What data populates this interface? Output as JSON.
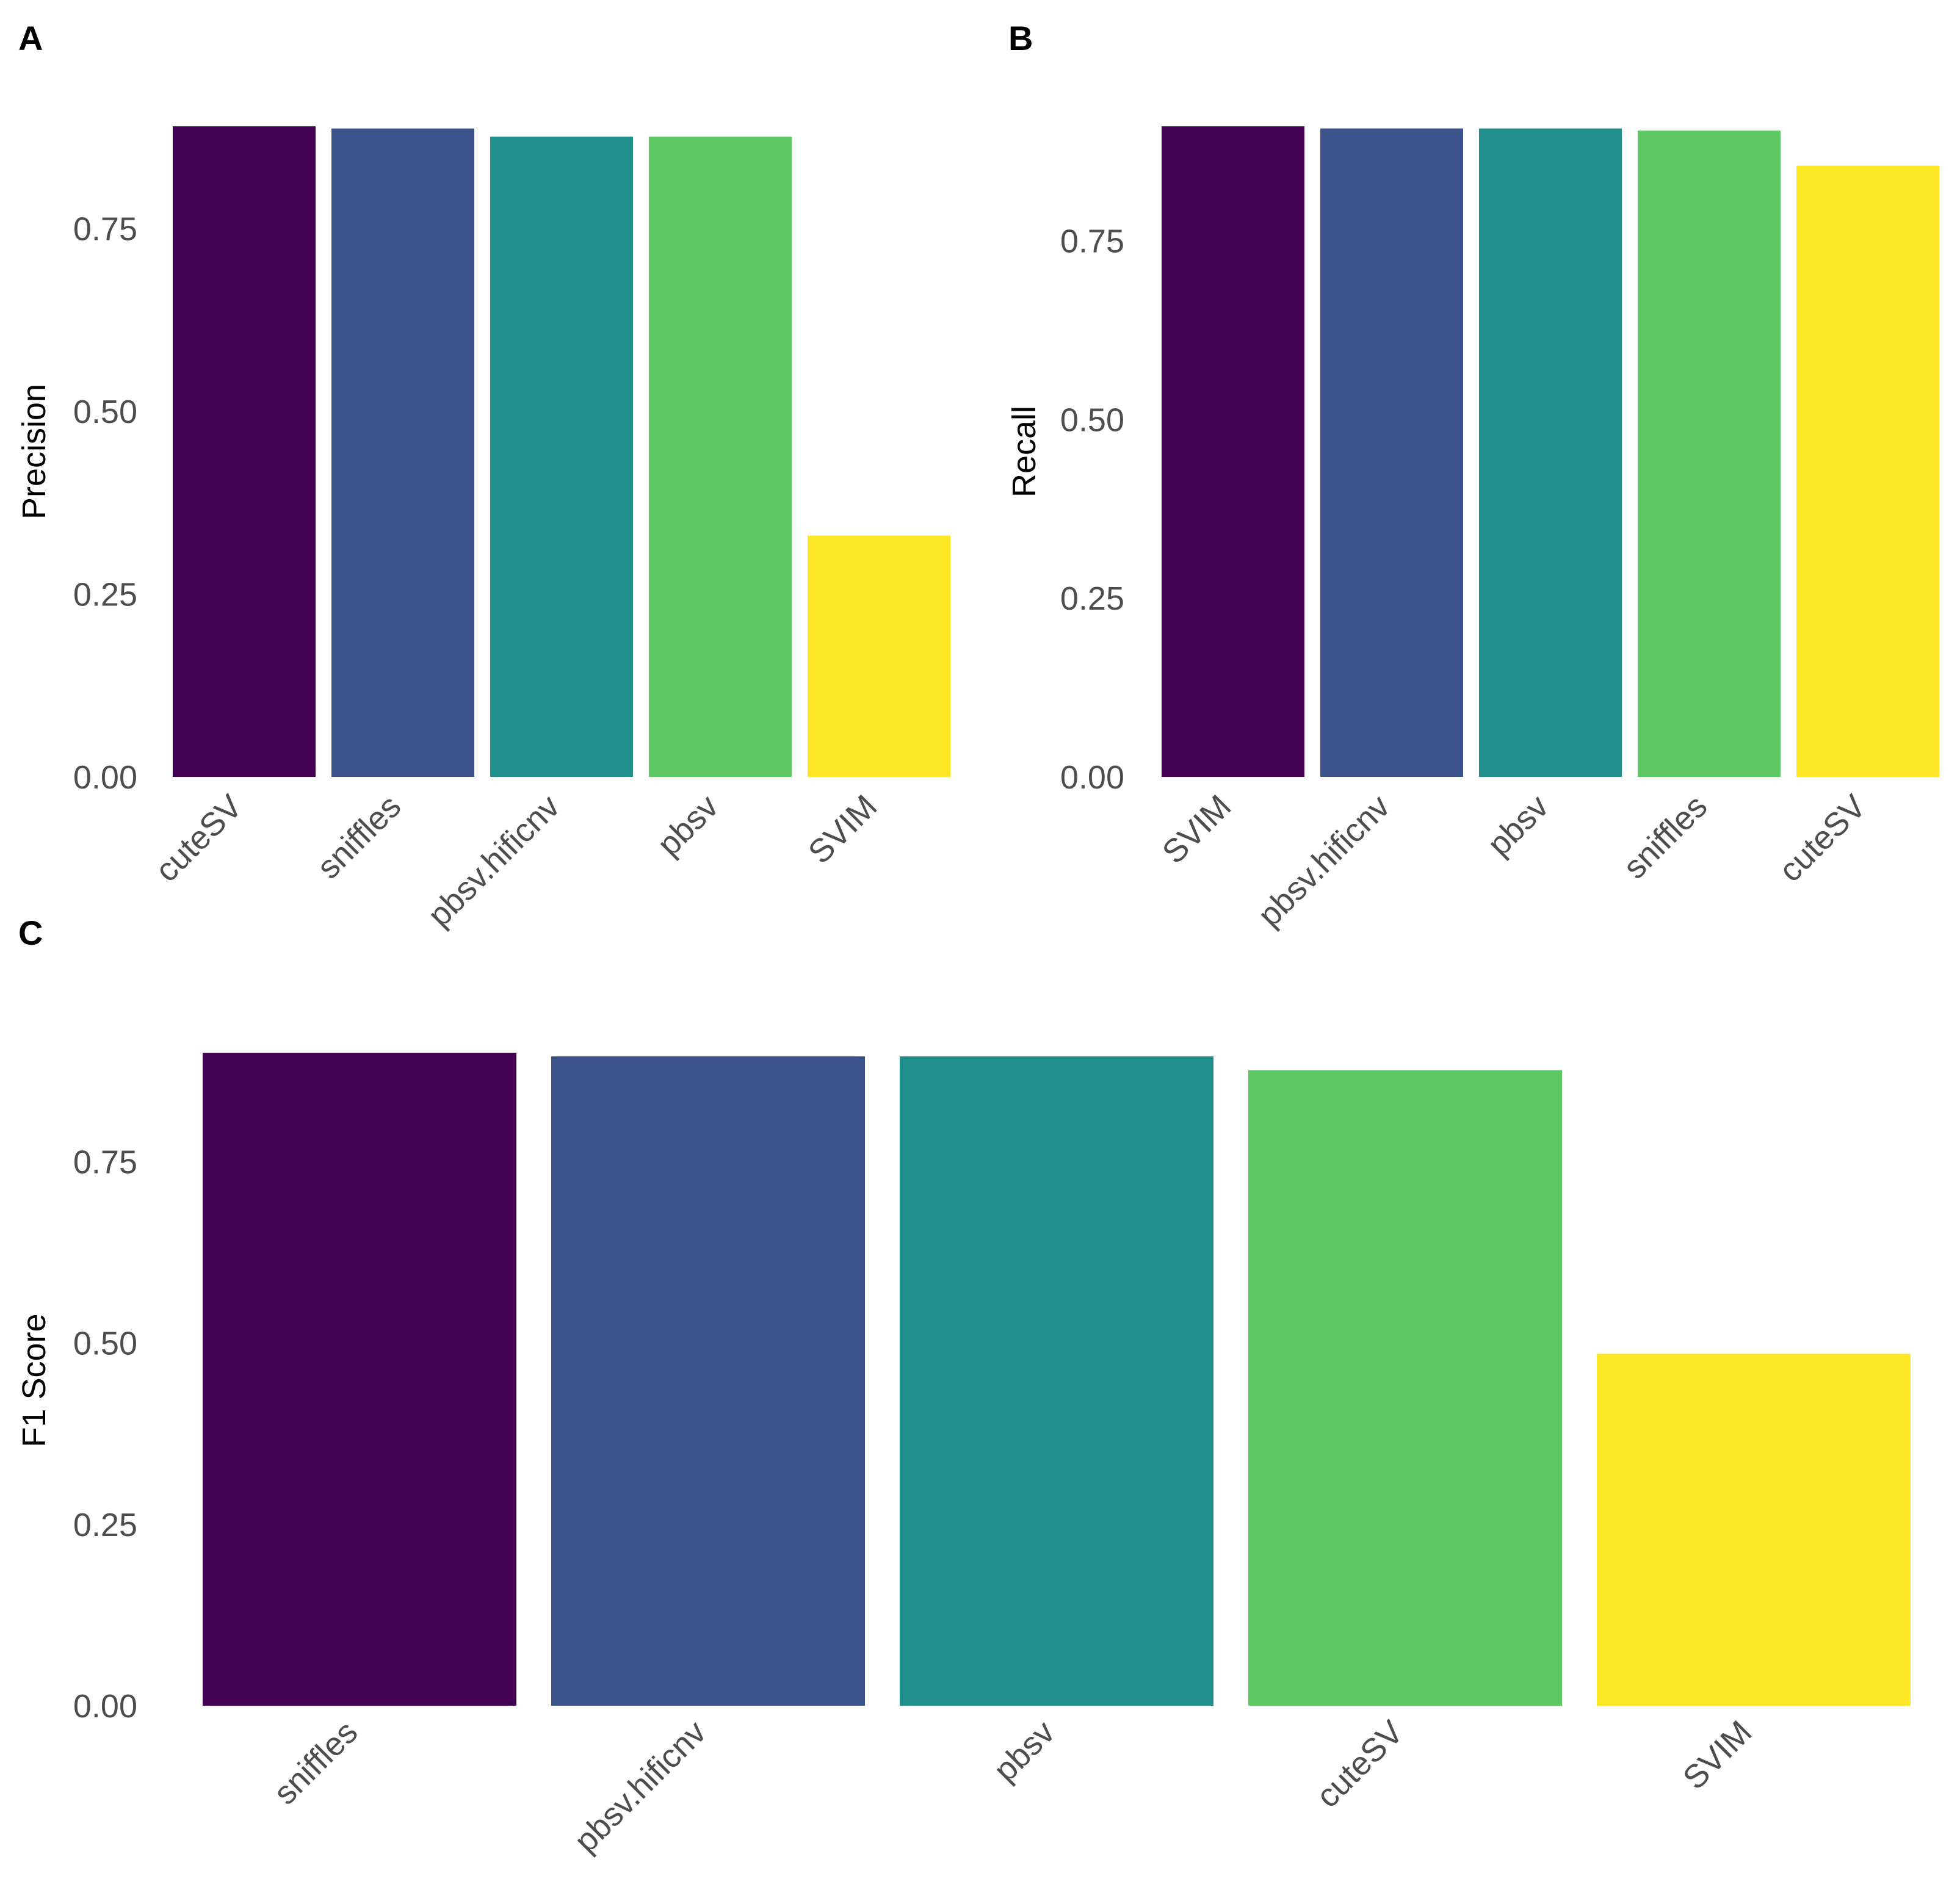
{
  "figure": {
    "panels": [
      "A",
      "B",
      "C"
    ]
  },
  "chart_data": [
    {
      "panel": "A",
      "type": "bar",
      "ylabel": "Precision",
      "xlabel": "",
      "ylim": [
        0,
        0.89
      ],
      "yticks": [
        "0.00",
        "0.25",
        "0.50",
        "0.75"
      ],
      "categories": [
        "cuteSV",
        "sniffles",
        "pbsv.hificnv",
        "pbsv",
        "SVIM"
      ],
      "values": [
        0.89,
        0.887,
        0.876,
        0.876,
        0.33
      ],
      "colors": [
        "#440154",
        "#3B528B",
        "#21908C",
        "#5DC863",
        "#FDE725"
      ],
      "grid": false,
      "legend": "none"
    },
    {
      "panel": "B",
      "type": "bar",
      "ylabel": "Recall",
      "xlabel": "",
      "ylim": [
        0,
        0.91
      ],
      "yticks": [
        "0.00",
        "0.25",
        "0.50",
        "0.75"
      ],
      "categories": [
        "SVIM",
        "pbsv.hificnv",
        "pbsv",
        "sniffles",
        "cuteSV"
      ],
      "values": [
        0.91,
        0.907,
        0.907,
        0.904,
        0.855
      ],
      "colors": [
        "#440154",
        "#3B528B",
        "#21908C",
        "#5DC863",
        "#FDE725"
      ],
      "grid": false,
      "legend": "none"
    },
    {
      "panel": "C",
      "type": "bar",
      "ylabel": "F1 Score",
      "xlabel": "",
      "ylim": [
        0,
        0.9
      ],
      "yticks": [
        "0.00",
        "0.25",
        "0.50",
        "0.75"
      ],
      "categories": [
        "sniffles",
        "pbsv.hificnv",
        "pbsv",
        "cuteSV",
        "SVIM"
      ],
      "values": [
        0.9,
        0.895,
        0.895,
        0.876,
        0.485
      ],
      "colors": [
        "#440154",
        "#3B528B",
        "#21908C",
        "#5DC863",
        "#FDE725"
      ],
      "grid": false,
      "legend": "none"
    }
  ]
}
